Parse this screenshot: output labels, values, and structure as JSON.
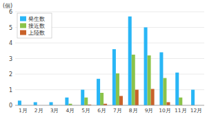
{
  "chart_data": {
    "type": "bar",
    "categories": [
      "1月",
      "2月",
      "3月",
      "4月",
      "5月",
      "6月",
      "7月",
      "8月",
      "9月",
      "10月",
      "11月",
      "12月"
    ],
    "series": [
      {
        "name": "発生数",
        "color": "#29b6f6",
        "values": [
          0.3,
          0.2,
          0.2,
          0.5,
          1.0,
          1.7,
          3.6,
          5.7,
          5.0,
          3.4,
          2.1,
          1.0
        ]
      },
      {
        "name": "接近数",
        "color": "#8bc34a",
        "values": [
          0.0,
          0.0,
          0.0,
          0.1,
          0.5,
          0.8,
          2.05,
          3.25,
          3.2,
          1.75,
          0.5,
          0.0
        ]
      },
      {
        "name": "上陸数",
        "color": "#c8622a",
        "values": [
          0.0,
          0.0,
          0.0,
          0.0,
          0.05,
          0.1,
          0.6,
          1.0,
          1.05,
          0.2,
          0.0,
          0.0
        ]
      }
    ],
    "ylabel": "(個)",
    "ylim": [
      0,
      6
    ],
    "yticks": [
      0,
      1,
      2,
      3,
      4,
      5,
      6
    ],
    "grid": true,
    "legend": "upper left"
  }
}
